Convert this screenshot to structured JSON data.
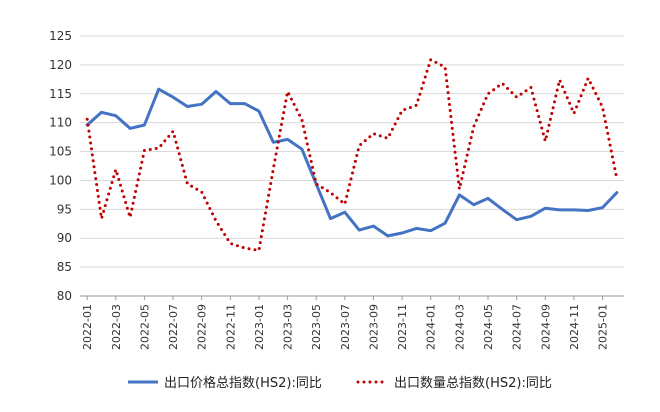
{
  "chart_data": {
    "type": "line",
    "title": "",
    "xlabel": "",
    "ylabel": "",
    "ylim": [
      80,
      125
    ],
    "yticks": [
      80,
      85,
      90,
      95,
      100,
      105,
      110,
      115,
      120,
      125
    ],
    "grid": "horizontal",
    "legend_position": "bottom",
    "x": [
      "2022-01",
      "2022-02",
      "2022-03",
      "2022-04",
      "2022-05",
      "2022-06",
      "2022-07",
      "2022-08",
      "2022-09",
      "2022-10",
      "2022-11",
      "2022-12",
      "2023-01",
      "2023-02",
      "2023-03",
      "2023-04",
      "2023-05",
      "2023-06",
      "2023-07",
      "2023-08",
      "2023-09",
      "2023-10",
      "2023-11",
      "2023-12",
      "2024-01",
      "2024-02",
      "2024-03",
      "2024-04",
      "2024-05",
      "2024-06",
      "2024-07",
      "2024-08",
      "2024-09",
      "2024-10",
      "2024-11",
      "2024-12",
      "2025-01",
      "2025-02"
    ],
    "xtick_labels": [
      "2022-01",
      "2022-03",
      "2022-05",
      "2022-07",
      "2022-09",
      "2022-11",
      "2023-01",
      "2023-03",
      "2023-05",
      "2023-07",
      "2023-09",
      "2023-11",
      "2024-01",
      "2024-03",
      "2024-05",
      "2024-07",
      "2024-09",
      "2024-11",
      "2025-01"
    ],
    "series": [
      {
        "name": "出口价格总指数(HS2):同比",
        "color": "#4472C4",
        "style": "solid",
        "values": [
          109.6,
          111.8,
          111.2,
          109.0,
          109.6,
          115.8,
          114.4,
          112.8,
          113.2,
          115.4,
          113.3,
          113.3,
          112.0,
          106.6,
          107.1,
          105.4,
          99.4,
          93.4,
          94.5,
          91.4,
          92.1,
          90.4,
          90.9,
          91.7,
          91.3,
          92.6,
          97.5,
          95.8,
          96.9,
          95.0,
          93.2,
          93.8,
          95.2,
          94.9,
          94.9,
          94.8,
          95.3,
          97.9
        ]
      },
      {
        "name": "出口数量总指数(HS2):同比",
        "color": "#C00000",
        "style": "dotted",
        "values": [
          110.6,
          93.4,
          101.9,
          93.6,
          105.2,
          105.6,
          108.5,
          99.4,
          98.0,
          93.0,
          89.1,
          88.3,
          87.9,
          102.0,
          115.4,
          110.5,
          99.4,
          97.9,
          95.9,
          106.0,
          108.1,
          107.3,
          112.1,
          113.0,
          120.9,
          119.6,
          98.5,
          109.3,
          115.0,
          116.8,
          114.4,
          116.1,
          106.8,
          117.4,
          111.6,
          117.7,
          112.7,
          100.3
        ]
      }
    ]
  }
}
